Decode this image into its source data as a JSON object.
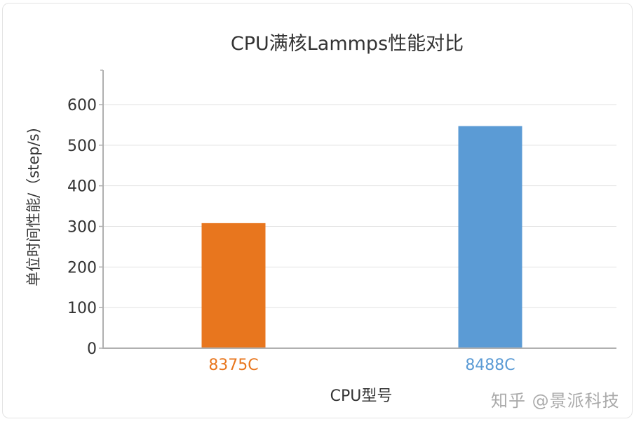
{
  "chart_data": {
    "type": "bar",
    "title": "CPU满核Lammps性能对比",
    "xlabel": "CPU型号",
    "ylabel": "单位时间性能/（step/s)",
    "categories": [
      "8375C",
      "8488C"
    ],
    "values": [
      308,
      547
    ],
    "colors": [
      "#E8761E",
      "#5B9BD5"
    ],
    "ylim": [
      0,
      600
    ],
    "yticks": [
      0,
      100,
      200,
      300,
      400,
      500,
      600
    ],
    "grid": true,
    "legend": null
  },
  "watermark": "知乎 @景派科技"
}
